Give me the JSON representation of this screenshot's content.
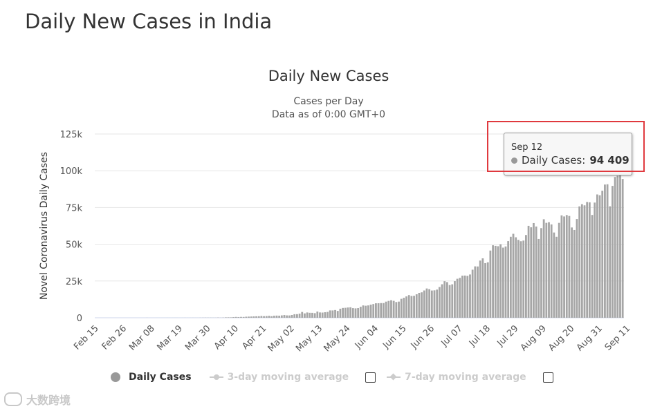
{
  "page": {
    "title": "Daily New Cases in India"
  },
  "legend": {
    "items": [
      {
        "label": "Daily Cases",
        "active": true
      },
      {
        "label": "3-day moving average",
        "active": false
      },
      {
        "label": "7-day moving average",
        "active": false
      }
    ]
  },
  "tooltip": {
    "date": "Sep 12",
    "series_label": "Daily Cases:",
    "value": "94 409"
  },
  "watermark": {
    "text": "大数跨境"
  },
  "colors": {
    "bar": "#a6a6a6",
    "grid": "#e6e6e6",
    "highlight": "#e0393e",
    "legend_inactive": "#cccccc"
  },
  "chart_data": {
    "type": "bar",
    "title": "Daily New Cases",
    "subtitle": [
      "Cases per Day",
      "Data as of 0:00 GMT+0"
    ],
    "xlabel": "",
    "ylabel": "Novel Coronavirus Daily Cases",
    "ylim": [
      0,
      125000
    ],
    "ytick_labels": [
      "0",
      "25k",
      "50k",
      "75k",
      "100k",
      "125k"
    ],
    "ytick_values": [
      0,
      25000,
      50000,
      75000,
      100000,
      125000
    ],
    "xtick_labels": [
      "Feb 15",
      "Feb 26",
      "Mar 08",
      "Mar 19",
      "Mar 30",
      "Apr 10",
      "Apr 21",
      "May 02",
      "May 13",
      "May 24",
      "Jun 04",
      "Jun 15",
      "Jun 26",
      "Jul 07",
      "Jul 18",
      "Jul 29",
      "Aug 09",
      "Aug 20",
      "Aug 31",
      "Sep 11"
    ],
    "grid": true,
    "series": [
      {
        "name": "Daily Cases",
        "start_date": "Feb 15",
        "values": [
          0,
          0,
          0,
          0,
          0,
          0,
          0,
          0,
          0,
          0,
          0,
          0,
          0,
          0,
          0,
          0,
          0,
          1,
          0,
          2,
          22,
          1,
          2,
          2,
          3,
          6,
          4,
          6,
          12,
          9,
          15,
          13,
          12,
          5,
          15,
          22,
          14,
          20,
          33,
          22,
          28,
          58,
          82,
          103,
          89,
          83,
          67,
          73,
          155,
          69,
          149,
          289,
          316,
          294,
          458,
          557,
          491,
          582,
          552,
          705,
          773,
          846,
          909,
          982,
          1030,
          1214,
          1076,
          1150,
          1330,
          1045,
          1377,
          1465,
          1396,
          1612,
          1835,
          1607,
          1561,
          1873,
          2394,
          2442,
          2806,
          3932,
          2963,
          3587,
          3364,
          3344,
          3113,
          4213,
          3604,
          3524,
          3763,
          3942,
          4987,
          4970,
          5242,
          4630,
          6147,
          6654,
          6767,
          6977,
          7113,
          6535,
          6387,
          6566,
          7466,
          8380,
          8171,
          8392,
          8909,
          9304,
          9851,
          9887,
          9971,
          9983,
          10956,
          11458,
          11929,
          11502,
          10667,
          10974,
          12881,
          13586,
          14516,
          15413,
          14821,
          14933,
          15968,
          16922,
          17296,
          18552,
          19906,
          19459,
          18522,
          18653,
          19148,
          20903,
          22771,
          24850,
          24248,
          22252,
          22752,
          24879,
          26506,
          27114,
          28637,
          28701,
          28498,
          29429,
          32695,
          34956,
          34884,
          38902,
          40425,
          37148,
          37724,
          45720,
          49310,
          48916,
          48661,
          49981,
          47703,
          48513,
          52123,
          55078,
          57118,
          54735,
          52972,
          52050,
          52509,
          56282,
          62538,
          61537,
          64399,
          62064,
          53601,
          60963,
          66999,
          64553,
          65002,
          63490,
          57981,
          55079,
          64531,
          69652,
          68898,
          69878,
          69239,
          61408,
          59696,
          67151,
          75760,
          77266,
          76472,
          78761,
          78512,
          69921,
          78357,
          83883,
          83341,
          86432,
          90632,
          90802,
          75809,
          89706,
          95735,
          96551,
          97570,
          94409
        ]
      }
    ]
  }
}
